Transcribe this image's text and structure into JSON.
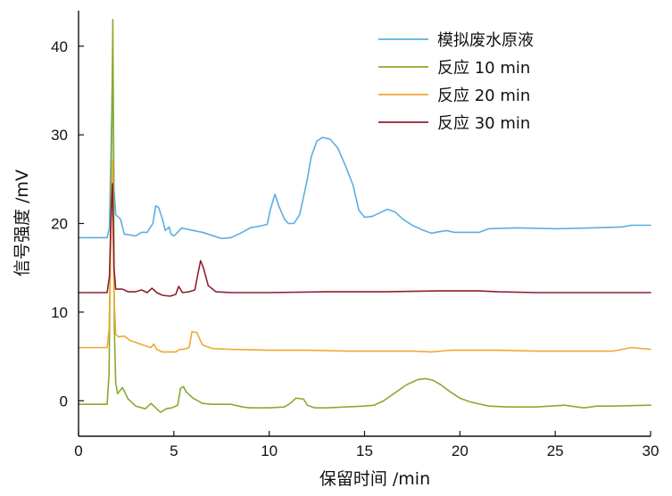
{
  "chart_data": {
    "type": "line",
    "title": "",
    "xlabel": "保留时间 /min",
    "ylabel": "信号强度 /mV",
    "xlim": [
      0,
      30
    ],
    "ylim": [
      -4,
      44
    ],
    "xticks": [
      0,
      5,
      10,
      15,
      20,
      25,
      30
    ],
    "yticks": [
      0,
      10,
      20,
      30,
      40
    ],
    "grid": false,
    "legend_position": "top-right",
    "series": [
      {
        "name": "模拟废水原液",
        "color": "#5aafe0",
        "points": [
          [
            0,
            18.4
          ],
          [
            1.5,
            18.4
          ],
          [
            1.62,
            19.5
          ],
          [
            1.72,
            30
          ],
          [
            1.8,
            39.5
          ],
          [
            1.86,
            24
          ],
          [
            1.95,
            21
          ],
          [
            2.2,
            20.5
          ],
          [
            2.4,
            18.8
          ],
          [
            3,
            18.6
          ],
          [
            3.3,
            19
          ],
          [
            3.6,
            19
          ],
          [
            3.9,
            20
          ],
          [
            4.05,
            22
          ],
          [
            4.2,
            21.8
          ],
          [
            4.4,
            20.5
          ],
          [
            4.55,
            19.2
          ],
          [
            4.75,
            19.6
          ],
          [
            4.85,
            18.8
          ],
          [
            5,
            18.6
          ],
          [
            5.2,
            19
          ],
          [
            5.4,
            19.5
          ],
          [
            5.8,
            19.3
          ],
          [
            6.5,
            19
          ],
          [
            7.5,
            18.3
          ],
          [
            8,
            18.4
          ],
          [
            8.5,
            18.9
          ],
          [
            9,
            19.5
          ],
          [
            9.5,
            19.7
          ],
          [
            9.9,
            19.9
          ],
          [
            10.05,
            21.5
          ],
          [
            10.3,
            23.3
          ],
          [
            10.5,
            22
          ],
          [
            10.8,
            20.5
          ],
          [
            11,
            20
          ],
          [
            11.3,
            20
          ],
          [
            11.6,
            21
          ],
          [
            11.8,
            23
          ],
          [
            12,
            25
          ],
          [
            12.2,
            27.5
          ],
          [
            12.5,
            29.3
          ],
          [
            12.8,
            29.7
          ],
          [
            13.2,
            29.5
          ],
          [
            13.6,
            28.5
          ],
          [
            14,
            26.5
          ],
          [
            14.4,
            24.3
          ],
          [
            14.7,
            21.5
          ],
          [
            15,
            20.7
          ],
          [
            15.4,
            20.8
          ],
          [
            15.8,
            21.2
          ],
          [
            16.2,
            21.6
          ],
          [
            16.6,
            21.3
          ],
          [
            17,
            20.5
          ],
          [
            17.5,
            19.8
          ],
          [
            18,
            19.3
          ],
          [
            18.5,
            18.9
          ],
          [
            19,
            19.1
          ],
          [
            19.3,
            19.2
          ],
          [
            19.7,
            19
          ],
          [
            21,
            19
          ],
          [
            21.5,
            19.4
          ],
          [
            23,
            19.5
          ],
          [
            25,
            19.4
          ],
          [
            27,
            19.5
          ],
          [
            28.5,
            19.6
          ],
          [
            29,
            19.8
          ],
          [
            30,
            19.8
          ]
        ]
      },
      {
        "name": "反应 10 min",
        "color": "#8aaa2e",
        "points": [
          [
            0,
            -0.4
          ],
          [
            1.5,
            -0.4
          ],
          [
            1.6,
            3
          ],
          [
            1.72,
            26
          ],
          [
            1.8,
            43
          ],
          [
            1.88,
            8
          ],
          [
            1.95,
            2
          ],
          [
            2.05,
            0.8
          ],
          [
            2.3,
            1.5
          ],
          [
            2.6,
            0.2
          ],
          [
            3,
            -0.6
          ],
          [
            3.5,
            -0.9
          ],
          [
            3.8,
            -0.3
          ],
          [
            4,
            -0.7
          ],
          [
            4.3,
            -1.3
          ],
          [
            4.6,
            -0.9
          ],
          [
            4.9,
            -0.8
          ],
          [
            5.2,
            -0.5
          ],
          [
            5.35,
            1.4
          ],
          [
            5.5,
            1.6
          ],
          [
            5.65,
            1
          ],
          [
            6,
            0.3
          ],
          [
            6.5,
            -0.3
          ],
          [
            7,
            -0.4
          ],
          [
            8,
            -0.4
          ],
          [
            8.6,
            -0.7
          ],
          [
            9,
            -0.8
          ],
          [
            10,
            -0.8
          ],
          [
            10.8,
            -0.7
          ],
          [
            11.1,
            -0.3
          ],
          [
            11.4,
            0.3
          ],
          [
            11.8,
            0.2
          ],
          [
            12,
            -0.5
          ],
          [
            12.4,
            -0.8
          ],
          [
            13,
            -0.8
          ],
          [
            14,
            -0.7
          ],
          [
            15,
            -0.6
          ],
          [
            15.5,
            -0.5
          ],
          [
            16,
            0
          ],
          [
            16.6,
            0.9
          ],
          [
            17.2,
            1.8
          ],
          [
            17.8,
            2.4
          ],
          [
            18.2,
            2.5
          ],
          [
            18.6,
            2.3
          ],
          [
            19,
            1.8
          ],
          [
            19.5,
            1
          ],
          [
            20,
            0.3
          ],
          [
            20.5,
            -0.1
          ],
          [
            21.5,
            -0.6
          ],
          [
            22.5,
            -0.7
          ],
          [
            24,
            -0.7
          ],
          [
            25.5,
            -0.5
          ],
          [
            26.5,
            -0.8
          ],
          [
            27.2,
            -0.6
          ],
          [
            28,
            -0.6
          ],
          [
            30,
            -0.5
          ]
        ]
      },
      {
        "name": "反应 20 min",
        "color": "#f0a830",
        "points": [
          [
            0,
            6
          ],
          [
            1.5,
            6
          ],
          [
            1.6,
            8
          ],
          [
            1.72,
            21
          ],
          [
            1.78,
            27
          ],
          [
            1.86,
            12
          ],
          [
            1.95,
            7.5
          ],
          [
            2.1,
            7.2
          ],
          [
            2.4,
            7.3
          ],
          [
            2.7,
            6.8
          ],
          [
            3.1,
            6.5
          ],
          [
            3.5,
            6.2
          ],
          [
            3.8,
            6
          ],
          [
            3.95,
            6.4
          ],
          [
            4.1,
            5.8
          ],
          [
            4.4,
            5.5
          ],
          [
            5.1,
            5.5
          ],
          [
            5.3,
            5.8
          ],
          [
            5.5,
            5.8
          ],
          [
            5.8,
            6
          ],
          [
            5.95,
            7.8
          ],
          [
            6.2,
            7.7
          ],
          [
            6.5,
            6.3
          ],
          [
            7,
            5.9
          ],
          [
            8,
            5.8
          ],
          [
            10,
            5.7
          ],
          [
            12,
            5.7
          ],
          [
            14,
            5.6
          ],
          [
            16,
            5.6
          ],
          [
            17.5,
            5.6
          ],
          [
            18.5,
            5.5
          ],
          [
            19.5,
            5.7
          ],
          [
            22,
            5.7
          ],
          [
            24,
            5.6
          ],
          [
            26,
            5.6
          ],
          [
            28,
            5.6
          ],
          [
            29,
            6
          ],
          [
            30,
            5.8
          ]
        ]
      },
      {
        "name": "反应 30 min",
        "color": "#8c2030",
        "points": [
          [
            0,
            12.2
          ],
          [
            1.5,
            12.2
          ],
          [
            1.62,
            14
          ],
          [
            1.72,
            22
          ],
          [
            1.78,
            24.5
          ],
          [
            1.86,
            15
          ],
          [
            1.95,
            12.6
          ],
          [
            2.3,
            12.6
          ],
          [
            2.6,
            12.3
          ],
          [
            3,
            12.3
          ],
          [
            3.3,
            12.5
          ],
          [
            3.6,
            12.2
          ],
          [
            3.85,
            12.7
          ],
          [
            4.1,
            12.2
          ],
          [
            4.4,
            11.9
          ],
          [
            4.8,
            11.8
          ],
          [
            5.1,
            12
          ],
          [
            5.25,
            12.9
          ],
          [
            5.45,
            12.2
          ],
          [
            5.8,
            12.3
          ],
          [
            6.1,
            12.5
          ],
          [
            6.25,
            14.2
          ],
          [
            6.4,
            15.8
          ],
          [
            6.55,
            15
          ],
          [
            6.8,
            13
          ],
          [
            7.2,
            12.3
          ],
          [
            8,
            12.2
          ],
          [
            10,
            12.2
          ],
          [
            13,
            12.3
          ],
          [
            16,
            12.3
          ],
          [
            19,
            12.4
          ],
          [
            21,
            12.4
          ],
          [
            22,
            12.3
          ],
          [
            24,
            12.2
          ],
          [
            27,
            12.2
          ],
          [
            30,
            12.2
          ]
        ]
      }
    ]
  }
}
